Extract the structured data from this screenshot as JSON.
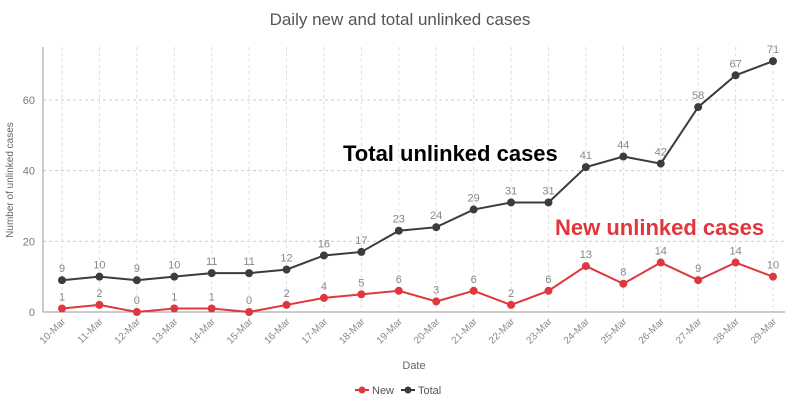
{
  "chart_data": {
    "type": "line",
    "title": "Daily new and total unlinked cases",
    "xlabel": "Date",
    "ylabel": "Number of unlinked cases",
    "ylim": [
      0,
      75
    ],
    "yticks": [
      0,
      20,
      40,
      60
    ],
    "grid": true,
    "legend_position": "bottom",
    "categories": [
      "10-Mar",
      "11-Mar",
      "12-Mar",
      "13-Mar",
      "14-Mar",
      "15-Mar",
      "16-Mar",
      "17-Mar",
      "18-Mar",
      "19-Mar",
      "20-Mar",
      "21-Mar",
      "22-Mar",
      "23-Mar",
      "24-Mar",
      "25-Mar",
      "26-Mar",
      "27-Mar",
      "28-Mar",
      "29-Mar"
    ],
    "series": [
      {
        "name": "New",
        "color": "#e0363d",
        "values": [
          1,
          2,
          0,
          1,
          1,
          0,
          2,
          4,
          5,
          6,
          3,
          6,
          2,
          6,
          13,
          8,
          14,
          9,
          14,
          10
        ]
      },
      {
        "name": "Total",
        "color": "#3c3c3c",
        "values": [
          9,
          10,
          9,
          10,
          11,
          11,
          12,
          16,
          17,
          23,
          24,
          29,
          31,
          31,
          41,
          44,
          42,
          58,
          67,
          71
        ]
      }
    ],
    "annotations": [
      {
        "text": "Total unlinked cases",
        "color": "#000000"
      },
      {
        "text": "New unlinked cases",
        "color": "#e0363d"
      }
    ]
  }
}
